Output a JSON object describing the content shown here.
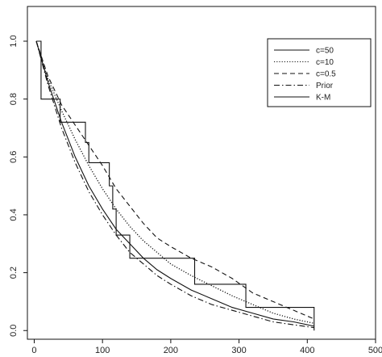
{
  "chart_data": {
    "type": "line",
    "title": "",
    "xlabel": "",
    "ylabel": "",
    "xlim": [
      -10,
      500
    ],
    "ylim": [
      -0.03,
      1.12
    ],
    "xticks": [
      0,
      100,
      200,
      300,
      400,
      500
    ],
    "xtick_labels": [
      "0",
      "100",
      "200",
      "300",
      "400",
      "500"
    ],
    "yticks": [
      0.0,
      0.2,
      0.4,
      0.6,
      0.8,
      1.0
    ],
    "ytick_labels": [
      "0.0",
      "0.2",
      "0.4",
      "0.6",
      "0.8",
      "1.0"
    ],
    "grid": false,
    "legend_position": "top-right",
    "series": [
      {
        "name": "c=50",
        "style": "solid",
        "color": "#111111",
        "x": [
          3,
          20,
          40,
          60,
          80,
          100,
          120,
          140,
          160,
          180,
          200,
          230,
          260,
          290,
          320,
          350,
          380,
          410
        ],
        "y": [
          1.0,
          0.86,
          0.72,
          0.6,
          0.5,
          0.42,
          0.35,
          0.3,
          0.25,
          0.21,
          0.18,
          0.14,
          0.11,
          0.08,
          0.06,
          0.04,
          0.03,
          0.015
        ]
      },
      {
        "name": "c=10",
        "style": "dotted",
        "color": "#111111",
        "x": [
          3,
          20,
          40,
          60,
          80,
          100,
          120,
          140,
          160,
          180,
          200,
          230,
          260,
          290,
          320,
          350,
          380,
          410
        ],
        "y": [
          1.0,
          0.87,
          0.76,
          0.66,
          0.57,
          0.49,
          0.42,
          0.36,
          0.31,
          0.27,
          0.23,
          0.19,
          0.155,
          0.12,
          0.09,
          0.06,
          0.04,
          0.025
        ]
      },
      {
        "name": "c=0.5",
        "style": "dashed",
        "color": "#111111",
        "x": [
          3,
          20,
          40,
          60,
          80,
          100,
          120,
          140,
          160,
          180,
          200,
          230,
          260,
          290,
          320,
          350,
          380,
          410
        ],
        "y": [
          1.0,
          0.88,
          0.78,
          0.71,
          0.64,
          0.57,
          0.49,
          0.43,
          0.37,
          0.32,
          0.29,
          0.25,
          0.22,
          0.18,
          0.13,
          0.1,
          0.07,
          0.04
        ]
      },
      {
        "name": "Prior",
        "style": "dashdot",
        "color": "#111111",
        "x": [
          3,
          20,
          40,
          60,
          80,
          100,
          120,
          140,
          160,
          180,
          200,
          230,
          260,
          290,
          320,
          350,
          380,
          410
        ],
        "y": [
          1.0,
          0.85,
          0.7,
          0.58,
          0.48,
          0.4,
          0.33,
          0.27,
          0.23,
          0.19,
          0.16,
          0.12,
          0.09,
          0.07,
          0.05,
          0.03,
          0.02,
          0.01
        ]
      },
      {
        "name": "K-M",
        "style": "step",
        "color": "#111111",
        "x": [
          3,
          10,
          17,
          38,
          45,
          75,
          80,
          87,
          110,
          115,
          120,
          125,
          140,
          235,
          310,
          410
        ],
        "y": [
          1.0,
          0.8,
          0.8,
          0.72,
          0.72,
          0.65,
          0.58,
          0.58,
          0.5,
          0.42,
          0.33,
          0.33,
          0.25,
          0.16,
          0.08,
          0.0
        ]
      }
    ]
  }
}
